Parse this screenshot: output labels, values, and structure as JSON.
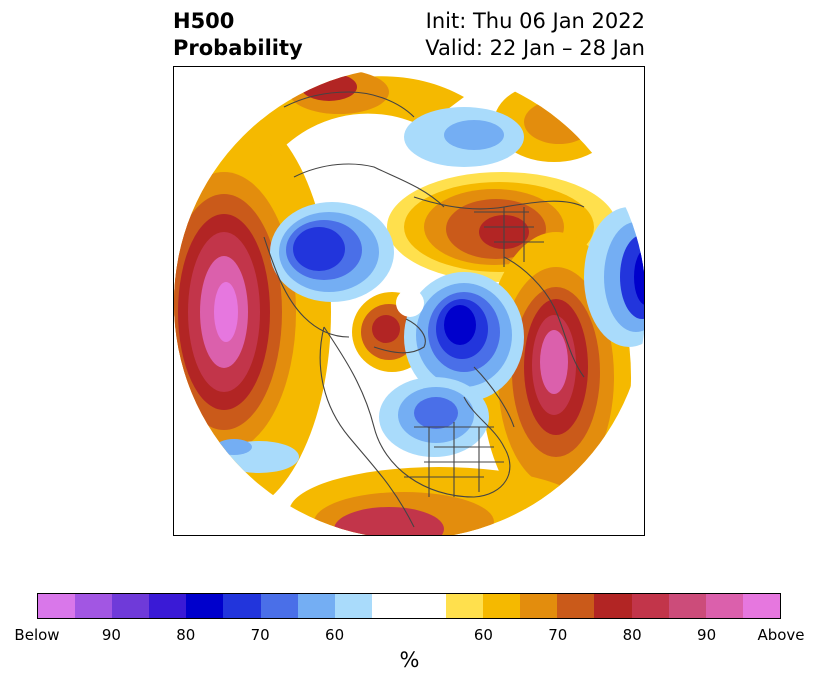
{
  "title": {
    "left_line1": "H500",
    "left_line2": "Probability",
    "init": "Init: Thu 06 Jan 2022",
    "valid": "Valid: 22 Jan – 28 Jan"
  },
  "colorbar": {
    "colors": [
      "#d977ea",
      "#a256e3",
      "#6f3ad9",
      "#3a1ad6",
      "#0000cc",
      "#2235dc",
      "#4a6fe8",
      "#74aef3",
      "#a9dbfb",
      "#ffffff",
      "#ffffff",
      "#ffe04d",
      "#f5b900",
      "#e38d0d",
      "#ca5a1a",
      "#b22524",
      "#c2354a",
      "#cc4c7a",
      "#db60ac",
      "#e677df"
    ],
    "tick_labels": [
      "Below",
      "90",
      "80",
      "70",
      "60",
      "",
      "60",
      "70",
      "80",
      "90",
      "Above"
    ],
    "unit": "%"
  },
  "map": {
    "projection": "north-polar-stereographic",
    "region": "Northern Hemisphere"
  }
}
